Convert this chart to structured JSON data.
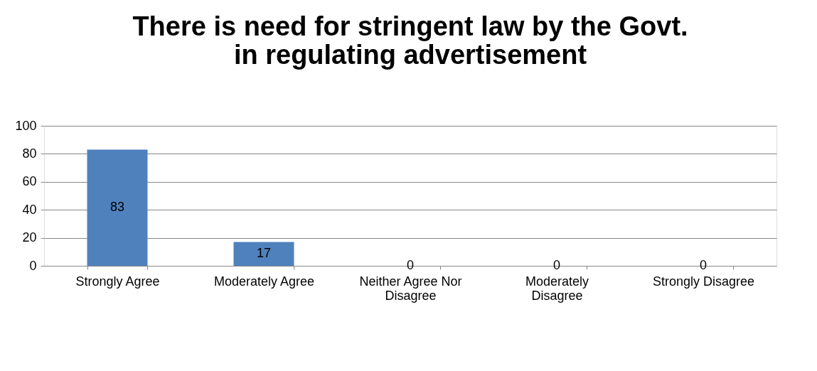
{
  "chart_data": {
    "type": "bar",
    "title": "There is need for stringent law by the Govt.\nin regulating advertisement",
    "categories": [
      "Strongly Agree",
      "Moderately Agree",
      "Neither Agree Nor Disagree",
      "Moderately Disagree",
      "Strongly Disagree"
    ],
    "values": [
      83,
      17,
      0,
      0,
      0
    ],
    "color": "#4f81bd",
    "ylim": [
      0,
      100
    ],
    "yticks": [
      0,
      20,
      40,
      60,
      80,
      100
    ],
    "grid": "y",
    "data_labels": true
  }
}
